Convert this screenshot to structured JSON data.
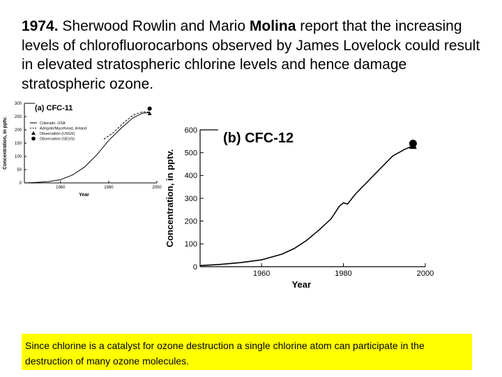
{
  "slide": {
    "year": "1974.",
    "text_1": " Sherwood Rowlin and Mario ",
    "name_bold": "Molina",
    "text_2": " report that the increasing levels of chlorofluorocarbons observed by James Lovelock could result in elevated stratospheric chlorine levels and hence damage stratospheric ozone.",
    "note": "Since chlorine is a catalyst for ozone destruction a single chlorine atom can participate in the destruction of many ozone molecules."
  },
  "chart_data": [
    {
      "type": "line",
      "title": "(a) CFC-11",
      "xlabel": "Year",
      "ylabel": "Concentration, in pptv.",
      "xlim": [
        1945,
        2000
      ],
      "ylim": [
        0,
        300
      ],
      "xticks": [
        1960,
        1980,
        2000
      ],
      "yticks": [
        0,
        50,
        100,
        150,
        200,
        250,
        300
      ],
      "legend": [
        "Colorado, USA",
        "Adrigole/Macehead, Ireland",
        "Observation (USGS)",
        "Observation (SEUS)"
      ],
      "legend_position": "top-left",
      "series": [
        {
          "name": "Colorado, USA",
          "x": [
            1945,
            1950,
            1955,
            1960,
            1965,
            1970,
            1975,
            1980,
            1985,
            1990,
            1994,
            1997
          ],
          "y": [
            0,
            2,
            5,
            12,
            30,
            60,
            105,
            160,
            205,
            245,
            263,
            265
          ]
        },
        {
          "name": "Adrigole/Macehead, Ireland",
          "x": [
            1978,
            1982,
            1986,
            1990,
            1994,
            1997
          ],
          "y": [
            165,
            190,
            225,
            255,
            268,
            268
          ]
        }
      ],
      "points": [
        {
          "name": "Observation (USGS)",
          "x": 1997,
          "y": 262,
          "marker": "triangle"
        },
        {
          "name": "Observation (SEUS)",
          "x": 1997,
          "y": 280,
          "marker": "circle"
        }
      ]
    },
    {
      "type": "line",
      "title": "(b) CFC-12",
      "xlabel": "Year",
      "ylabel": "Concentration, in pptv.",
      "xlim": [
        1945,
        2000
      ],
      "ylim": [
        0,
        600
      ],
      "xticks": [
        1960,
        1980,
        2000
      ],
      "yticks": [
        0,
        100,
        200,
        300,
        400,
        500,
        600
      ],
      "series": [
        {
          "x": [
            1945,
            1950,
            1955,
            1960,
            1965,
            1968,
            1971,
            1974,
            1977,
            1979,
            1980,
            1981,
            1983,
            1986,
            1989,
            1992,
            1995,
            1997
          ],
          "y": [
            5,
            10,
            18,
            30,
            55,
            80,
            115,
            160,
            210,
            265,
            280,
            275,
            320,
            375,
            430,
            485,
            515,
            530
          ]
        }
      ],
      "points": [
        {
          "x": 1997,
          "y": 540,
          "marker": "circle"
        },
        {
          "x": 1997,
          "y": 530,
          "marker": "triangle"
        }
      ]
    }
  ]
}
